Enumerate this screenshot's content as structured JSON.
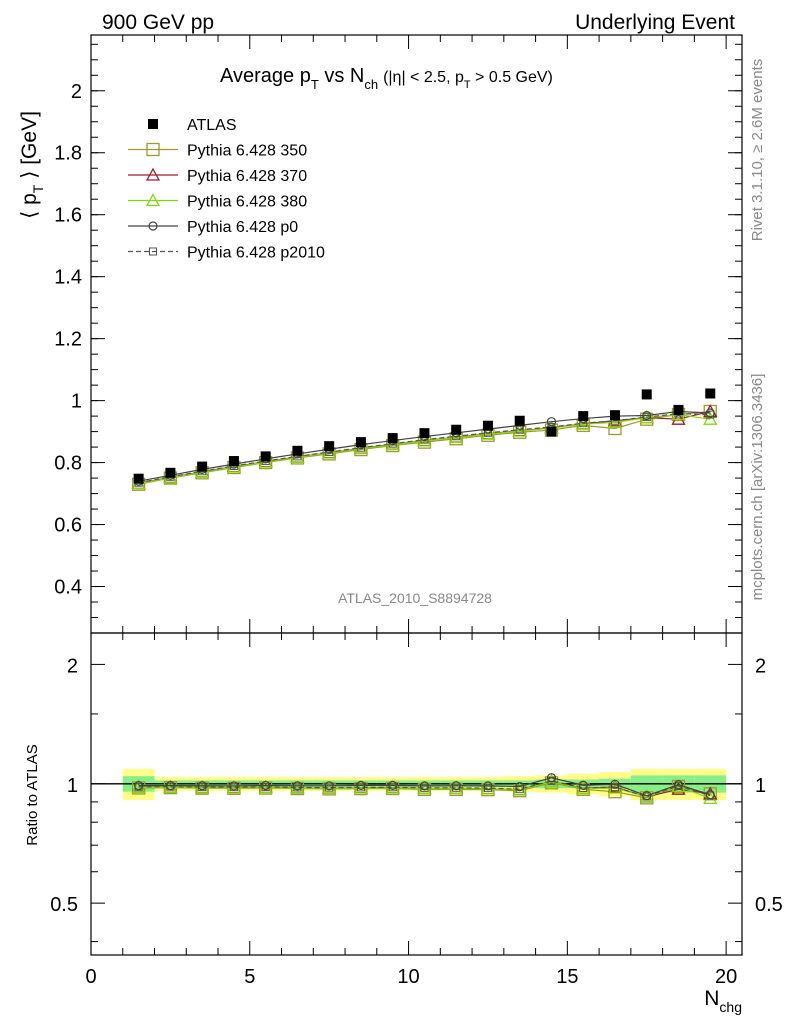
{
  "header": {
    "left": "900 GeV pp",
    "right": "Underlying Event"
  },
  "side": {
    "rivet": "Rivet 3.1.10, ≥ 2.6M events",
    "mcplots": "mcplots.cern.ch [arXiv:1306.3436]"
  },
  "title": {
    "main": "Average p",
    "main_sub": "T",
    "vs": " vs N",
    "vs_sub": "ch",
    "cuts_a": "(|η| < 2.5, p",
    "cuts_sub": "T",
    "cuts_b": " > 0.5 GeV)"
  },
  "axis_labels": {
    "y_main_a": "⟨ p",
    "y_main_sub": "T",
    "y_main_b": " ⟩ [GeV]",
    "y_ratio": "Ratio to ATLAS",
    "x": "N",
    "x_sub": "chg"
  },
  "watermark": "ATLAS_2010_S8894728",
  "chart_data": {
    "type": "line",
    "x": [
      1.5,
      2.5,
      3.5,
      4.5,
      5.5,
      6.5,
      7.5,
      8.5,
      9.5,
      10.5,
      11.5,
      12.5,
      13.5,
      14.5,
      15.5,
      16.5,
      17.5,
      18.5,
      19.5
    ],
    "xlim": [
      0,
      20.5
    ],
    "ylim": [
      0.25,
      2.18
    ],
    "ratio_ylim": [
      0.37,
      2.4
    ],
    "x_ticks": [
      0,
      5,
      10,
      15,
      20
    ],
    "y_ticks": [
      0.4,
      0.6,
      0.8,
      1,
      1.2,
      1.4,
      1.6,
      1.8,
      2
    ],
    "ratio_y_ticks": [
      0.5,
      1,
      2
    ],
    "band_xedges": [
      1,
      2,
      3,
      4,
      5,
      6,
      7,
      8,
      9,
      10,
      11,
      12,
      13,
      14,
      15,
      16,
      17,
      18,
      19,
      20
    ],
    "band_stat": [
      0.045,
      0.02,
      0.02,
      0.02,
      0.02,
      0.02,
      0.02,
      0.02,
      0.02,
      0.02,
      0.02,
      0.02,
      0.02,
      0.025,
      0.025,
      0.03,
      0.05,
      0.05,
      0.05
    ],
    "band_total": [
      0.09,
      0.04,
      0.04,
      0.04,
      0.04,
      0.04,
      0.04,
      0.04,
      0.04,
      0.04,
      0.04,
      0.04,
      0.045,
      0.05,
      0.06,
      0.07,
      0.09,
      0.09,
      0.09
    ],
    "series": [
      {
        "name": "ATLAS",
        "color": "#000000",
        "marker": "filled-square",
        "dash": "",
        "values": [
          0.748,
          0.767,
          0.787,
          0.805,
          0.82,
          0.838,
          0.853,
          0.866,
          0.879,
          0.895,
          0.906,
          0.919,
          0.935,
          0.9,
          0.95,
          0.953,
          1.02,
          0.97,
          1.023
        ]
      },
      {
        "name": "Pythia 6.428 350",
        "color": "#a09a2a",
        "marker": "open-square",
        "dash": "",
        "values": [
          0.73,
          0.75,
          0.767,
          0.784,
          0.8,
          0.815,
          0.828,
          0.842,
          0.855,
          0.866,
          0.877,
          0.888,
          0.898,
          0.905,
          0.92,
          0.91,
          0.94,
          0.955,
          0.965
        ]
      },
      {
        "name": "Pythia 6.428 370",
        "color": "#9b1c2a",
        "marker": "open-triangle",
        "dash": "",
        "values": [
          0.733,
          0.752,
          0.77,
          0.787,
          0.803,
          0.818,
          0.832,
          0.846,
          0.859,
          0.871,
          0.882,
          0.893,
          0.903,
          0.912,
          0.925,
          0.935,
          0.945,
          0.94,
          0.965
        ]
      },
      {
        "name": "Pythia 6.428 380",
        "color": "#7fdd00",
        "marker": "open-triangle",
        "dash": "",
        "values": [
          0.732,
          0.751,
          0.769,
          0.786,
          0.802,
          0.817,
          0.831,
          0.845,
          0.858,
          0.87,
          0.881,
          0.892,
          0.902,
          0.911,
          0.924,
          0.93,
          0.945,
          0.955,
          0.94
        ]
      },
      {
        "name": "Pythia 6.428 p0",
        "color": "#444444",
        "marker": "open-circle",
        "dash": "",
        "values": [
          0.74,
          0.759,
          0.778,
          0.795,
          0.812,
          0.828,
          0.843,
          0.858,
          0.871,
          0.884,
          0.896,
          0.908,
          0.92,
          0.932,
          0.942,
          0.95,
          0.952,
          0.965,
          0.96
        ]
      },
      {
        "name": "Pythia 6.428 p2010",
        "color": "#555555",
        "marker": "open-square-small",
        "dash": "5,3",
        "values": [
          0.735,
          0.754,
          0.772,
          0.789,
          0.805,
          0.82,
          0.834,
          0.848,
          0.861,
          0.874,
          0.885,
          0.896,
          0.906,
          0.915,
          0.927,
          0.935,
          0.947,
          0.958,
          0.955
        ]
      }
    ]
  }
}
